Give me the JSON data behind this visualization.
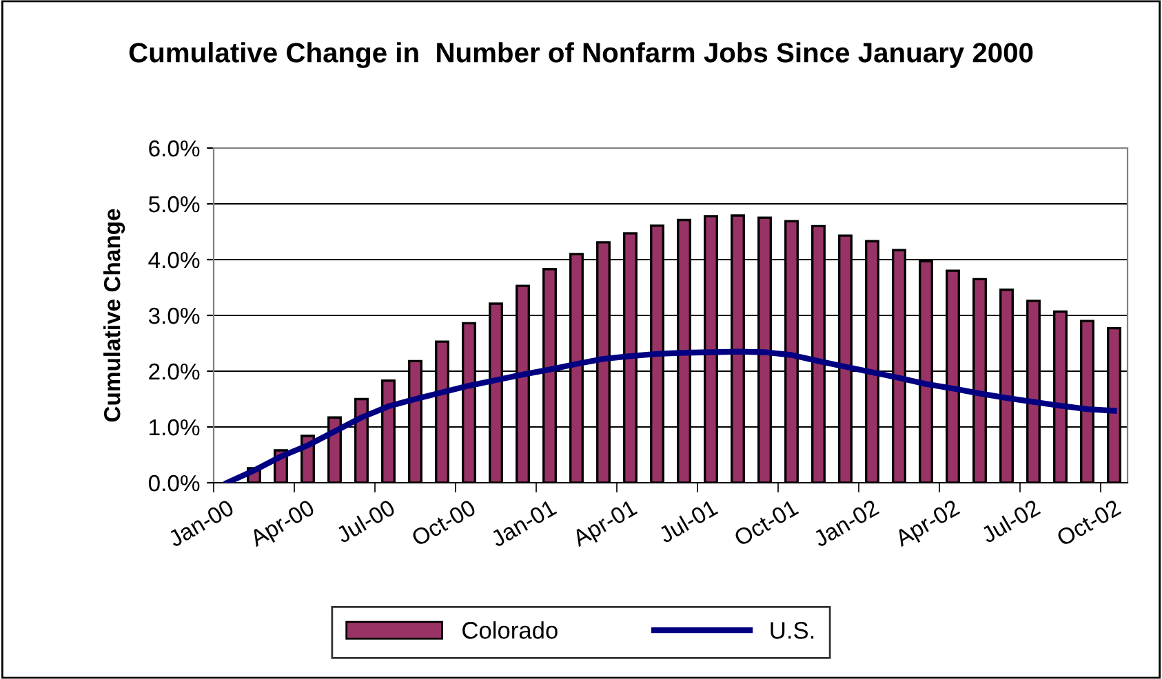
{
  "chart_data": {
    "type": "bar",
    "title": "Cumulative Change in  Number of Nonfarm Jobs Since January 2000",
    "ylabel": "Cumulative Change",
    "categories": [
      "Jan-00",
      null,
      null,
      "Apr-00",
      null,
      null,
      "Jul-00",
      null,
      null,
      "Oct-00",
      null,
      null,
      "Jan-01",
      null,
      null,
      "Apr-01",
      null,
      null,
      "Jul-01",
      null,
      null,
      "Oct-01",
      null,
      null,
      "Jan-02",
      null,
      null,
      "Apr-02",
      null,
      null,
      "Jul-02",
      null,
      null,
      "Oct-02"
    ],
    "series": [
      {
        "name": "Colorado",
        "color": "#993366",
        "values": [
          0,
          0.26,
          0.58,
          0.84,
          1.17,
          1.5,
          1.83,
          2.18,
          2.53,
          2.86,
          3.21,
          3.53,
          3.83,
          4.1,
          4.31,
          4.47,
          4.61,
          4.71,
          4.78,
          4.79,
          4.75,
          4.69,
          4.6,
          4.43,
          4.33,
          4.17,
          3.97,
          3.8,
          3.65,
          3.46,
          3.26,
          3.07,
          2.9,
          2.77
        ]
      },
      {
        "name": "U.S.",
        "type": "line",
        "color": "#000080",
        "values": [
          0,
          0.22,
          0.47,
          0.67,
          0.92,
          1.17,
          1.37,
          1.5,
          1.62,
          1.74,
          1.84,
          1.94,
          2.03,
          2.13,
          2.22,
          2.27,
          2.31,
          2.33,
          2.34,
          2.35,
          2.34,
          2.29,
          2.18,
          2.08,
          1.98,
          1.88,
          1.77,
          1.69,
          1.6,
          1.52,
          1.45,
          1.38,
          1.32,
          1.29
        ]
      }
    ],
    "ylim": [
      0,
      6
    ],
    "yticks": [
      {
        "value": 0,
        "label": "0.0%"
      },
      {
        "value": 1,
        "label": "1.0%"
      },
      {
        "value": 2,
        "label": "2.0%"
      },
      {
        "value": 3,
        "label": "3.0%"
      },
      {
        "value": 4,
        "label": "4.0%"
      },
      {
        "value": 5,
        "label": "5.0%"
      },
      {
        "value": 6,
        "label": "6.0%"
      }
    ],
    "grid": "y",
    "legend": "bottom",
    "marker": "none",
    "line_style": "solid"
  }
}
